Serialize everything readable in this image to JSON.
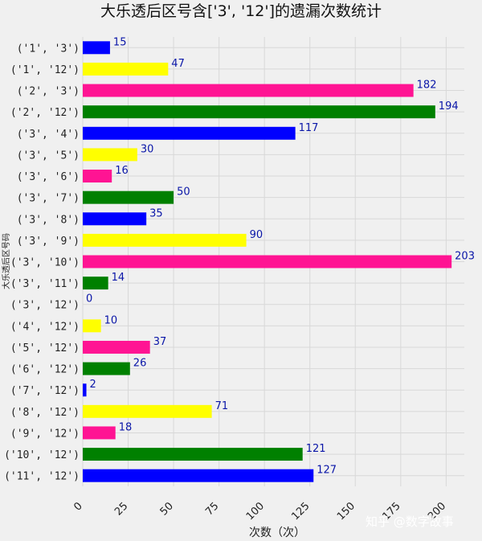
{
  "chart_data": {
    "type": "bar",
    "orientation": "horizontal",
    "title": "大乐透后区号含['3', '12']的遗漏次数统计",
    "xlabel": "次数（次）",
    "ylabel": "大乐透后区号码",
    "xlim": [
      0,
      210
    ],
    "xticks": [
      0,
      25,
      50,
      75,
      100,
      125,
      150,
      175,
      200
    ],
    "grid": true,
    "categories": [
      "('1', '3')",
      "('1', '12')",
      "('2', '3')",
      "('2', '12')",
      "('3', '4')",
      "('3', '5')",
      "('3', '6')",
      "('3', '7')",
      "('3', '8')",
      "('3', '9')",
      "('3', '10')",
      "('3', '11')",
      "('3', '12')",
      "('4', '12')",
      "('5', '12')",
      "('6', '12')",
      "('7', '12')",
      "('8', '12')",
      "('9', '12')",
      "('10', '12')",
      "('11', '12')"
    ],
    "values": [
      15,
      47,
      182,
      194,
      117,
      30,
      16,
      50,
      35,
      90,
      203,
      14,
      0,
      10,
      37,
      26,
      2,
      71,
      18,
      121,
      127
    ],
    "colors": [
      "#0000ff",
      "#ffff00",
      "#ff1493",
      "#008000"
    ]
  },
  "watermark": "知乎 @数字故事"
}
